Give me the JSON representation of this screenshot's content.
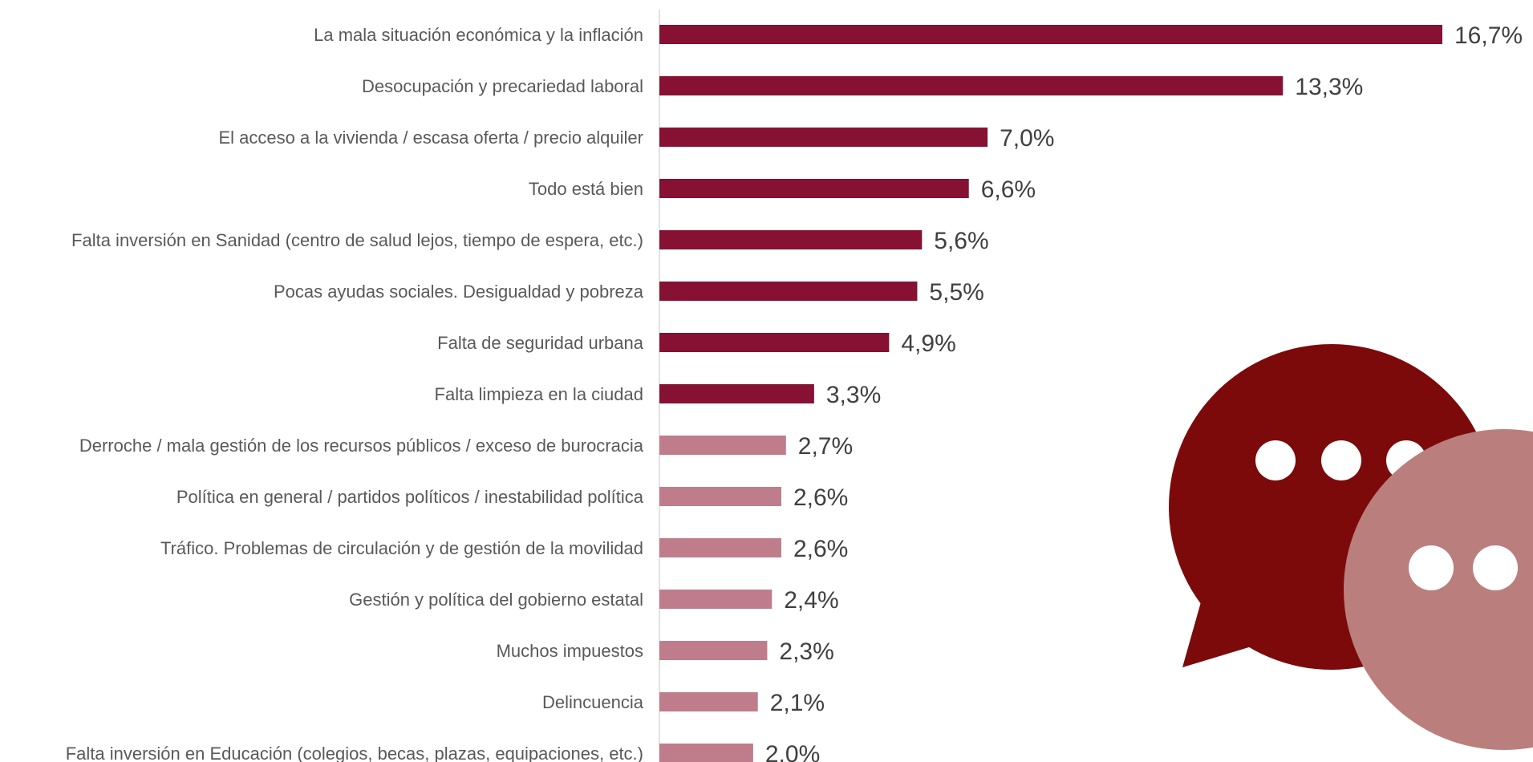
{
  "chart_data": {
    "type": "bar",
    "orientation": "horizontal",
    "categories": [
      "La mala situación económica y la inflación",
      "Desocupación y precariedad laboral",
      "El acceso a la vivienda / escasa oferta / precio alquiler",
      "Todo está bien",
      "Falta inversión en Sanidad (centro de salud lejos, tiempo de espera, etc.)",
      "Pocas ayudas sociales. Desigualdad y pobreza",
      "Falta de seguridad urbana",
      "Falta limpieza en la ciudad",
      "Derroche / mala gestión de los recursos públicos / exceso de burocracia",
      "Política en general / partidos políticos / inestabilidad política",
      "Tráfico. Problemas de circulación y de gestión de la movilidad",
      "Gestión y política del gobierno estatal",
      "Muchos impuestos",
      "Delincuencia",
      "Falta inversión en Educación (colegios, becas, plazas, equipaciones, etc.)"
    ],
    "values": [
      16.7,
      13.3,
      7.0,
      6.6,
      5.6,
      5.5,
      4.9,
      3.3,
      2.7,
      2.6,
      2.6,
      2.4,
      2.3,
      2.1,
      2.0
    ],
    "value_labels": [
      "16,7%",
      "13,3%",
      "7,0%",
      "6,6%",
      "5,6%",
      "5,5%",
      "4,9%",
      "3,3%",
      "2,7%",
      "2,6%",
      "2,6%",
      "2,4%",
      "2,3%",
      "2,1%",
      "2,0%"
    ],
    "highlight_count": 8,
    "xlim": [
      0,
      16.7
    ],
    "grid": false,
    "legend": "none",
    "title": "",
    "xlabel": "",
    "ylabel": ""
  },
  "colors": {
    "bar_primary": "#861133",
    "bar_secondary": "#bf7d8c",
    "axis": "#d9d9d9",
    "category_text": "#595959",
    "value_text": "#404040",
    "bubble_dark": "#7c0a0a",
    "bubble_light": "#ba7f7d",
    "dots": "#ffffff"
  },
  "decoration": {
    "icon": "speech-bubbles-icon"
  }
}
